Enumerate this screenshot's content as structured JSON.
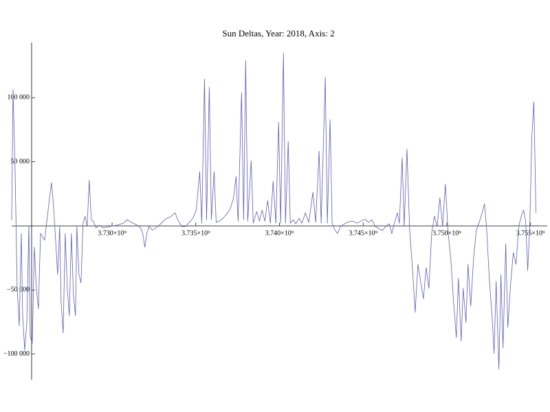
{
  "chart_data": {
    "type": "line",
    "title": "Sun Deltas, Year: 2018, Axis: 2",
    "x": [
      3724000000,
      3724082000,
      3724205000,
      3724328000,
      3724451000,
      3724574000,
      3724656000,
      3724779000,
      3724902000,
      3725025000,
      3725107000,
      3725230000,
      3725353000,
      3725476000,
      3725599000,
      3725722000,
      3725968000,
      3726255000,
      3726378000,
      3726501000,
      3726624000,
      3726747000,
      3726870000,
      3726952000,
      3727075000,
      3727198000,
      3727321000,
      3727444000,
      3727567000,
      3727690000,
      3727813000,
      3727895000,
      3728018000,
      3728141000,
      3728264000,
      3728387000,
      3728510000,
      3728633000,
      3728756000,
      3728879000,
      3729043000,
      3729248000,
      3729453000,
      3729863000,
      3730273000,
      3730683000,
      3730888000,
      3731093000,
      3731503000,
      3731708000,
      3731831000,
      3731954000,
      3732077000,
      3732200000,
      3732405000,
      3732610000,
      3732815000,
      3733061000,
      3733266000,
      3733471000,
      3733758000,
      3733963000,
      3734168000,
      3734373000,
      3734619000,
      3734824000,
      3735029000,
      3735234000,
      3735357000,
      3735521000,
      3735644000,
      3735808000,
      3735931000,
      3736095000,
      3736218000,
      3736423000,
      3736628000,
      3736833000,
      3737038000,
      3737243000,
      3737407000,
      3737530000,
      3737735000,
      3737858000,
      3737981000,
      3738104000,
      3738309000,
      3738432000,
      3738637000,
      3738801000,
      3738965000,
      3739129000,
      3739293000,
      3739457000,
      3739621000,
      3739785000,
      3739949000,
      3740072000,
      3740236000,
      3740359000,
      3740523000,
      3740646000,
      3740810000,
      3740974000,
      3741179000,
      3741343000,
      3741548000,
      3741753000,
      3741999000,
      3742163000,
      3742368000,
      3742491000,
      3742737000,
      3742860000,
      3743024000,
      3743147000,
      3743311000,
      3743475000,
      3743639000,
      3743885000,
      3744131000,
      3744377000,
      3744623000,
      3744869000,
      3745115000,
      3745320000,
      3745525000,
      3745730000,
      3745935000,
      3746140000,
      3746345000,
      3746550000,
      3746714000,
      3746878000,
      3747042000,
      3747165000,
      3747329000,
      3747452000,
      3747616000,
      3747780000,
      3747944000,
      3748108000,
      3748272000,
      3748436000,
      3748600000,
      3748764000,
      3748928000,
      3749092000,
      3749256000,
      3749420000,
      3749584000,
      3749748000,
      3749912000,
      3750076000,
      3750240000,
      3750404000,
      3750568000,
      3750691000,
      3750855000,
      3750978000,
      3751142000,
      3751265000,
      3751429000,
      3751593000,
      3751757000,
      3751921000,
      3752085000,
      3752249000,
      3752372000,
      3752536000,
      3752700000,
      3752823000,
      3752946000,
      3753110000,
      3753233000,
      3753356000,
      3753520000,
      3753643000,
      3753807000,
      3753971000,
      3754135000,
      3754299000,
      3754463000,
      3754586000,
      3754709000,
      3754832000,
      3754955000,
      3755078000,
      3755201000,
      3755324000
    ],
    "series": [
      {
        "color": "#5c5cb8",
        "values": [
          4800,
          106500,
          42300,
          -48700,
          -78100,
          -5900,
          -70100,
          -96800,
          -75400,
          -500,
          -86100,
          -91500,
          -16600,
          -48700,
          -64700,
          -5900,
          -11200,
          20900,
          33700,
          15500,
          -11200,
          -38000,
          -500,
          -59400,
          -83500,
          -5900,
          -48700,
          -70100,
          -5900,
          -54000,
          -70100,
          -500,
          -38000,
          -44400,
          2100,
          7500,
          -500,
          35800,
          4800,
          3700,
          -1600,
          500,
          -1600,
          -500,
          500,
          2100,
          4800,
          3200,
          500,
          -1600,
          -5900,
          -16600,
          -5900,
          -500,
          -3200,
          -1600,
          500,
          3700,
          5900,
          7000,
          10200,
          3700,
          -500,
          -500,
          2700,
          5900,
          12300,
          42300,
          2100,
          114500,
          4800,
          108100,
          4800,
          42300,
          2700,
          3700,
          5900,
          9100,
          12800,
          20900,
          38500,
          3700,
          103800,
          4800,
          128900,
          3700,
          50800,
          2100,
          11200,
          3700,
          12300,
          3700,
          19800,
          2100,
          34800,
          2100,
          80800,
          2100,
          134800,
          2100,
          65800,
          2100,
          4800,
          1600,
          5900,
          2100,
          10200,
          2700,
          26200,
          2700,
          58300,
          2100,
          116100,
          2100,
          82900,
          2100,
          -3200,
          -5900,
          -500,
          1600,
          3200,
          3700,
          2100,
          3700,
          5300,
          2700,
          4800,
          -500,
          -2100,
          -3700,
          -500,
          1600,
          -5900,
          2700,
          10200,
          2100,
          53000,
          -500,
          59900,
          -3200,
          -32600,
          -67400,
          -30000,
          -43300,
          -56700,
          -32600,
          -48700,
          -5900,
          7500,
          -500,
          21900,
          -500,
          32600,
          -4800,
          -26200,
          -59400,
          -87200,
          -40700,
          -89900,
          -48700,
          -75400,
          -30000,
          -62600,
          -26200,
          -3700,
          2100,
          9100,
          17100,
          -500,
          -40700,
          -70100,
          -99500,
          -43300,
          -111800,
          -38000,
          -95200,
          -13900,
          -79200,
          -46000,
          -20900,
          -30000,
          -500,
          8600,
          12300,
          3700,
          -34800,
          -500,
          69000,
          96800,
          10200
        ]
      }
    ],
    "xlim": [
      3724000000,
      3756000000
    ],
    "ylim": [
      -120000,
      143000
    ],
    "xticks": [
      {
        "value": 3730000000,
        "label": "3.730×10⁹"
      },
      {
        "value": 3735000000,
        "label": "3.735×10⁹"
      },
      {
        "value": 3740000000,
        "label": "3.740×10⁹"
      },
      {
        "value": 3745000000,
        "label": "3.745×10⁹"
      },
      {
        "value": 3750000000,
        "label": "3.750×10⁹"
      },
      {
        "value": 3755000000,
        "label": "3.755×10⁹"
      }
    ],
    "yticks": [
      {
        "value": -100000,
        "label": "−100 000"
      },
      {
        "value": -50000,
        "label": "−50 000"
      },
      {
        "value": 50000,
        "label": "50 000"
      },
      {
        "value": 100000,
        "label": "100 000"
      }
    ]
  }
}
